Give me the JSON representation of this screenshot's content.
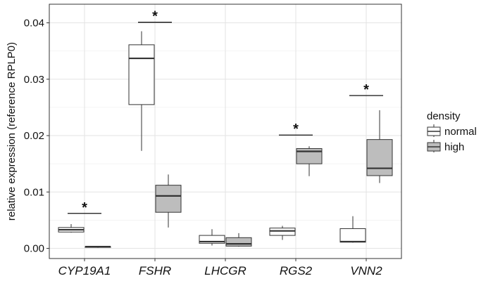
{
  "chart_data": {
    "type": "box",
    "title": "",
    "xlabel": "",
    "ylabel": "relative expression (reference RPLP0)",
    "ylim": [
      -0.0018,
      0.0433
    ],
    "yticks": [
      0.0,
      0.01,
      0.02,
      0.03,
      0.04
    ],
    "ytick_labels": [
      "0.00",
      "0.01",
      "0.02",
      "0.03",
      "0.04"
    ],
    "grid": true,
    "categories": [
      "CYP19A1",
      "FSHR",
      "LHCGR",
      "RGS2",
      "VNN2"
    ],
    "legend": {
      "title": "density",
      "position": "right",
      "entries": [
        {
          "name": "normal",
          "color": "#ffffff"
        },
        {
          "name": "high",
          "color": "#bdbdbd"
        }
      ]
    },
    "series": [
      {
        "name": "normal",
        "color": "#ffffff",
        "boxes": [
          {
            "category": "CYP19A1",
            "min": 0.0028,
            "q1": 0.0029,
            "median": 0.0033,
            "q3": 0.0037,
            "max": 0.0043
          },
          {
            "category": "FSHR",
            "min": 0.0173,
            "q1": 0.0255,
            "median": 0.0337,
            "q3": 0.0361,
            "max": 0.0385
          },
          {
            "category": "LHCGR",
            "min": 0.0005,
            "q1": 0.0009,
            "median": 0.0012,
            "q3": 0.0023,
            "max": 0.0034
          },
          {
            "category": "RGS2",
            "min": 0.0015,
            "q1": 0.0023,
            "median": 0.0031,
            "q3": 0.0036,
            "max": 0.004
          },
          {
            "category": "VNN2",
            "min": 0.001,
            "q1": 0.0011,
            "median": 0.0012,
            "q3": 0.0035,
            "max": 0.0057
          }
        ]
      },
      {
        "name": "high",
        "color": "#bdbdbd",
        "boxes": [
          {
            "category": "CYP19A1",
            "min": 0.0001,
            "q1": 0.0002,
            "median": 0.0003,
            "q3": 0.0003,
            "max": 0.0004
          },
          {
            "category": "FSHR",
            "min": 0.0037,
            "q1": 0.0064,
            "median": 0.0093,
            "q3": 0.0112,
            "max": 0.0131
          },
          {
            "category": "LHCGR",
            "min": 0.0003,
            "q1": 0.0004,
            "median": 0.0008,
            "q3": 0.0019,
            "max": 0.0027
          },
          {
            "category": "RGS2",
            "min": 0.0128,
            "q1": 0.015,
            "median": 0.0172,
            "q3": 0.0177,
            "max": 0.0181
          },
          {
            "category": "VNN2",
            "min": 0.0116,
            "q1": 0.0129,
            "median": 0.0142,
            "q3": 0.0193,
            "max": 0.0245
          }
        ]
      }
    ],
    "annotations": [
      {
        "category": "CYP19A1",
        "text": "*",
        "y": 0.0062
      },
      {
        "category": "FSHR",
        "text": "*",
        "y": 0.0401
      },
      {
        "category": "RGS2",
        "text": "*",
        "y": 0.0201
      },
      {
        "category": "VNN2",
        "text": "*",
        "y": 0.0271
      }
    ]
  }
}
